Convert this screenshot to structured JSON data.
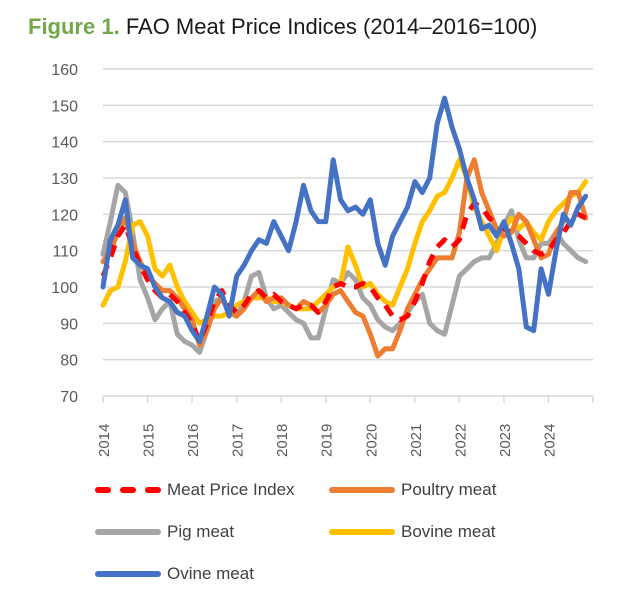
{
  "title": {
    "figure_label": "Figure 1.",
    "text": "FAO Meat Price Indices (2014–2016=100)"
  },
  "colors": {
    "figure_label": "#72a84a",
    "grid": "#d9d9d9",
    "axis_text": "#595959"
  },
  "chart_data": {
    "type": "line",
    "title": "Figure 1. FAO Meat Price Indices (2014–2016=100)",
    "xlabel": "",
    "ylabel": "",
    "ylim": [
      70,
      160
    ],
    "yticks": [
      "160",
      "150",
      "140",
      "130",
      "120",
      "110",
      "100",
      "90",
      "80",
      "70"
    ],
    "ytick_values": [
      160,
      150,
      140,
      130,
      120,
      110,
      100,
      90,
      80,
      70
    ],
    "xlim": [
      2014,
      2025
    ],
    "xticks": [
      "2014",
      "2015",
      "2016",
      "2017",
      "2018",
      "2019",
      "2020",
      "2021",
      "2022",
      "2023",
      "2024"
    ],
    "xtick_values": [
      2014,
      2015,
      2016,
      2017,
      2018,
      2019,
      2020,
      2021,
      2022,
      2023,
      2024
    ],
    "grid": true,
    "legend_position": "bottom",
    "x_start": 2014,
    "x_step_years": 0.1667,
    "series": [
      {
        "name": "Meat Price Index",
        "color": "#ff0000",
        "dashed": true,
        "values": [
          103,
          108,
          114,
          117,
          111,
          106,
          102,
          99,
          97,
          98,
          96,
          93,
          90,
          85,
          90,
          96,
          99,
          95,
          93,
          95,
          98,
          99,
          97,
          98,
          96,
          95,
          94,
          95,
          95,
          93,
          96,
          100,
          101,
          100,
          100,
          101,
          100,
          97,
          95,
          92,
          91,
          92,
          96,
          101,
          107,
          111,
          113,
          111,
          113,
          120,
          123,
          122,
          119,
          117,
          116,
          115,
          114,
          112,
          110,
          109,
          110,
          113,
          115,
          118,
          120,
          119
        ]
      },
      {
        "name": "Poultry meat",
        "color": "#ed7d31",
        "dashed": false,
        "values": [
          107,
          110,
          115,
          119,
          112,
          107,
          103,
          101,
          99,
          99,
          97,
          94,
          91,
          84,
          88,
          94,
          97,
          93,
          92,
          94,
          97,
          99,
          96,
          97,
          97,
          95,
          94,
          96,
          95,
          93,
          95,
          98,
          99,
          96,
          93,
          92,
          87,
          81,
          83,
          83,
          88,
          94,
          98,
          102,
          105,
          108,
          108,
          108,
          115,
          130,
          135,
          126,
          121,
          116,
          114,
          115,
          120,
          118,
          113,
          108,
          109,
          115,
          118,
          126,
          126,
          119
        ]
      },
      {
        "name": "Pig meat",
        "color": "#a5a5a5",
        "dashed": false,
        "values": [
          109,
          118,
          128,
          126,
          115,
          102,
          97,
          91,
          94,
          96,
          87,
          85,
          84,
          82,
          88,
          96,
          97,
          93,
          92,
          96,
          103,
          104,
          97,
          94,
          95,
          93,
          91,
          90,
          86,
          86,
          94,
          102,
          101,
          104,
          102,
          97,
          95,
          91,
          89,
          88,
          90,
          93,
          96,
          98,
          90,
          88,
          87,
          95,
          103,
          105,
          107,
          108,
          108,
          112,
          117,
          121,
          113,
          108,
          108,
          112,
          112,
          115,
          112,
          110,
          108,
          107
        ]
      },
      {
        "name": "Bovine meat",
        "color": "#ffc000",
        "dashed": false,
        "values": [
          95,
          99,
          100,
          107,
          117,
          118,
          114,
          105,
          103,
          106,
          100,
          96,
          93,
          90,
          91,
          92,
          92,
          93,
          95,
          96,
          97,
          97,
          97,
          96,
          96,
          95,
          94,
          94,
          94,
          96,
          98,
          100,
          101,
          111,
          106,
          100,
          101,
          98,
          96,
          95,
          100,
          105,
          112,
          118,
          121,
          125,
          126,
          130,
          135,
          130,
          122,
          118,
          114,
          110,
          116,
          119,
          116,
          118,
          115,
          113,
          118,
          121,
          123,
          125,
          126,
          129
        ]
      },
      {
        "name": "Ovine meat",
        "color": "#4472c4",
        "dashed": false,
        "values": [
          100,
          113,
          117,
          124,
          108,
          106,
          105,
          100,
          97,
          96,
          93,
          92,
          88,
          85,
          92,
          100,
          98,
          92,
          103,
          106,
          110,
          113,
          112,
          118,
          114,
          110,
          118,
          128,
          121,
          118,
          118,
          135,
          124,
          121,
          122,
          120,
          124,
          112,
          106,
          114,
          118,
          122,
          129,
          126,
          130,
          145,
          152,
          144,
          138,
          130,
          124,
          116,
          117,
          114,
          118,
          112,
          105,
          89,
          88,
          105,
          98,
          110,
          120,
          117,
          122,
          125
        ]
      }
    ]
  },
  "legend": [
    {
      "label": "Meat Price Index"
    },
    {
      "label": "Poultry meat"
    },
    {
      "label": "Pig meat"
    },
    {
      "label": "Bovine meat"
    },
    {
      "label": "Ovine meat"
    }
  ]
}
